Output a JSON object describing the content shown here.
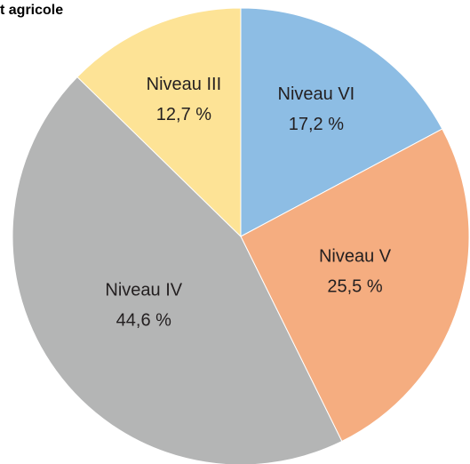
{
  "chart_data": {
    "type": "pie",
    "title": "t agricole",
    "categories": [
      "Niveau VI",
      "Niveau V",
      "Niveau IV",
      "Niveau III"
    ],
    "values": [
      17.2,
      25.5,
      44.6,
      12.7
    ],
    "value_labels": [
      "17,2 %",
      "25,5 %",
      "44,6 %",
      "12,7 %"
    ],
    "colors": [
      "#8dbde4",
      "#f5ad80",
      "#b4b5b5",
      "#fde396"
    ]
  }
}
